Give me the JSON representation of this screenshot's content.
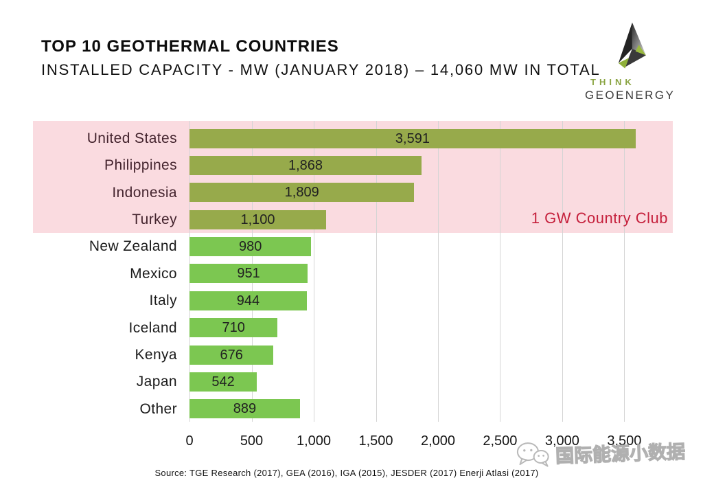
{
  "header": {
    "title": "TOP 10 GEOTHERMAL COUNTRIES",
    "subtitle": "INSTALLED CAPACITY - MW (JANUARY 2018) – 14,060 MW IN TOTAL"
  },
  "logo": {
    "line1": "THINK",
    "line2": "GEOENERGY"
  },
  "annotation": {
    "club_label": "1 GW Country Club"
  },
  "footer": {
    "source": "Source: TGE Research (2017), GEA (2016), IGA (2015), JESDER (2017) Enerji Atlasi (2017)"
  },
  "watermark": {
    "icon": "wechat-icon",
    "text": "国际能源小数据"
  },
  "chart_data": {
    "type": "bar",
    "orientation": "horizontal",
    "title": "TOP 10 GEOTHERMAL COUNTRIES",
    "subtitle": "INSTALLED CAPACITY - MW (JANUARY 2018) – 14,060 MW IN TOTAL",
    "categories": [
      "United States",
      "Philippines",
      "Indonesia",
      "Turkey",
      "New Zealand",
      "Mexico",
      "Italy",
      "Iceland",
      "Kenya",
      "Japan",
      "Other"
    ],
    "values": [
      3591,
      1868,
      1809,
      1100,
      980,
      951,
      944,
      710,
      676,
      542,
      889
    ],
    "value_labels": [
      "3,591",
      "1,868",
      "1,809",
      "1,100",
      "980",
      "951",
      "944",
      "710",
      "676",
      "542",
      "889"
    ],
    "x_ticks": [
      0,
      500,
      1000,
      1500,
      2000,
      2500,
      3000,
      3500
    ],
    "x_tick_labels": [
      "0",
      "500",
      "1,000",
      "1,500",
      "2,000",
      "2,500",
      "3,000",
      "3,500"
    ],
    "xlim": [
      0,
      3890
    ],
    "grid": true,
    "legend": false,
    "highlight_band": {
      "label": "1 GW Country Club",
      "rows": 4,
      "color": "#fadbe0",
      "label_color": "#c5203c"
    },
    "colors": {
      "bar_in_band": "#97aa4b",
      "bar_default": "#7cc751",
      "gridline": "#d4d4d4"
    }
  }
}
